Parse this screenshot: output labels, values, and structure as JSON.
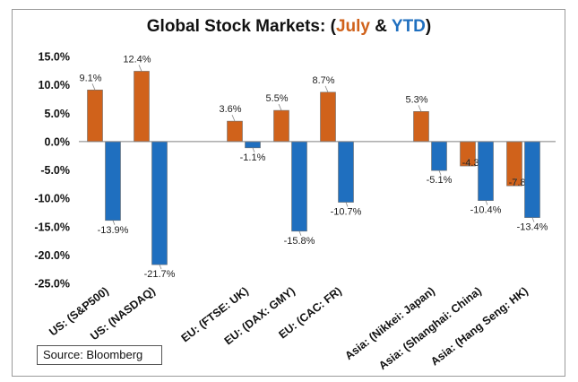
{
  "chart_data": {
    "type": "bar",
    "title": {
      "prefix": "Global Stock Markets: (",
      "july": "July",
      "amp": " & ",
      "ytd": "YTD",
      "suffix": ")"
    },
    "categories": [
      "US: (S&P500)",
      "US: (NASDAQ)",
      "EU: (FTSE: UK)",
      "EU: (DAX: GMY)",
      "EU: (CAC: FR)",
      "Asia: (Nikkei: Japan)",
      "Asia: (Shanghai: China)",
      "Asia: (Hang Seng: HK)"
    ],
    "series": [
      {
        "name": "July",
        "color": "#d0621b",
        "values": [
          9.1,
          12.4,
          3.6,
          5.5,
          8.7,
          5.3,
          -4.3,
          -7.8
        ]
      },
      {
        "name": "YTD",
        "color": "#1f6fbf",
        "values": [
          -13.9,
          -21.7,
          -1.1,
          -15.8,
          -10.7,
          -5.1,
          -10.4,
          -13.4
        ]
      }
    ],
    "ylim": [
      -25,
      15
    ],
    "yticks": [
      "15.0%",
      "10.0%",
      "5.0%",
      "0.0%",
      "-5.0%",
      "-10.0%",
      "-15.0%",
      "-20.0%",
      "-25.0%"
    ],
    "ytick_values": [
      15,
      10,
      5,
      0,
      -5,
      -10,
      -15,
      -20,
      -25
    ],
    "value_format": "percent-1dp",
    "grid": false,
    "legend": "none",
    "source": "Source: Bloomberg"
  }
}
